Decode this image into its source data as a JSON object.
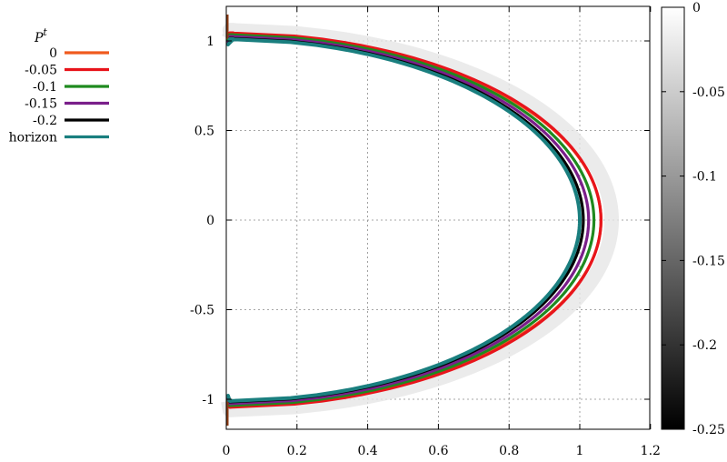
{
  "chart_data": {
    "type": "line",
    "title": "",
    "xlabel": "",
    "ylabel": "",
    "xlim": [
      0,
      1.2
    ],
    "ylim": [
      -1.15,
      1.15
    ],
    "x_ticks": [
      "0",
      "0.2",
      "0.4",
      "0.6",
      "0.8",
      "1",
      "1.2"
    ],
    "y_ticks": [
      "1",
      "0.5",
      "0",
      "-0.5",
      "-1"
    ],
    "grid": true,
    "legend": {
      "title": "P^t",
      "title_base": "P",
      "title_sup": "t",
      "placement": "outside-left",
      "entries": [
        "0",
        "-0.05",
        "-0.1",
        "-0.15",
        "-0.2",
        "horizon"
      ]
    },
    "series": [
      {
        "name": "0",
        "color": "#f05a1e",
        "x_at_y0": 1.06,
        "cap_y": 1.035
      },
      {
        "name": "-0.05",
        "color": "#e8141b",
        "x_at_y0": 1.06,
        "cap_y": 1.045
      },
      {
        "name": "-0.1",
        "color": "#1f8a1f",
        "x_at_y0": 1.04,
        "cap_y": 1.035
      },
      {
        "name": "-0.15",
        "color": "#7a1f8a",
        "x_at_y0": 1.025,
        "cap_y": 1.025
      },
      {
        "name": "-0.2",
        "color": "#000000",
        "x_at_y0": 1.01,
        "cap_y": 1.015
      },
      {
        "name": "horizon",
        "color": "#1a7f7f",
        "x_at_y0": 1.0,
        "cap_y": 1.01
      }
    ],
    "colorbar": {
      "range": [
        -0.25,
        0
      ],
      "ticks": [
        "0",
        "-0.05",
        "-0.1",
        "-0.15",
        "-0.2",
        "-0.25"
      ],
      "colormap": "gray"
    }
  }
}
